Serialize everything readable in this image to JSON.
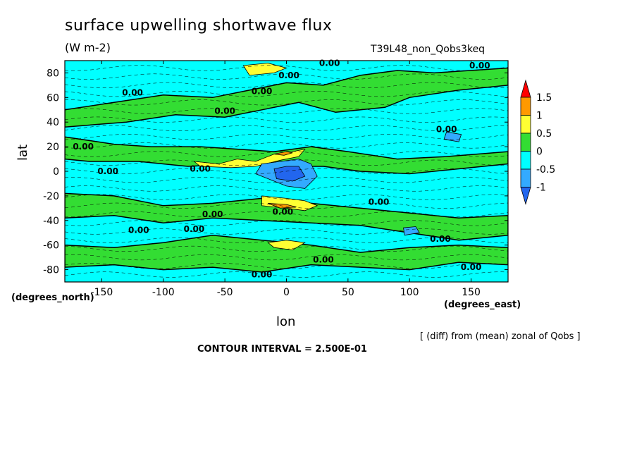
{
  "chart_data": {
    "type": "heatmap",
    "title": "surface upwelling shortwave flux",
    "units": "(W m-2)",
    "run_label": "T39L48_non_Qobs3keq",
    "xlabel": "lon",
    "ylabel": "lat",
    "x_units": "(degrees_east)",
    "y_units": "(degrees_north)",
    "xlim": [
      -180,
      180
    ],
    "ylim": [
      -90,
      90
    ],
    "x_ticks": [
      "-150",
      "-100",
      "-50",
      "0",
      "50",
      "100",
      "150"
    ],
    "x_tick_values": [
      -150,
      -100,
      -50,
      0,
      50,
      100,
      150
    ],
    "y_ticks": [
      "80",
      "60",
      "40",
      "20",
      "0",
      "-20",
      "-40",
      "-60",
      "-80"
    ],
    "y_tick_values": [
      80,
      60,
      40,
      20,
      0,
      -20,
      -40,
      -60,
      -80
    ],
    "colorbar": {
      "levels": [
        "1.5",
        "1",
        "0.5",
        "0",
        "-0.5",
        "-1"
      ],
      "colors": [
        "#ff0000",
        "#ff9900",
        "#ffff33",
        "#33dd33",
        "#00ffff",
        "#33aaff",
        "#2266ee"
      ]
    },
    "contour_labels": [
      {
        "text": "0.00",
        "lon": 35,
        "lat": 88
      },
      {
        "text": "0.00",
        "lon": 2,
        "lat": 78
      },
      {
        "text": "0.00",
        "lon": 157,
        "lat": 86
      },
      {
        "text": "0.00",
        "lon": -125,
        "lat": 64
      },
      {
        "text": "0.00",
        "lon": -20,
        "lat": 65
      },
      {
        "text": "0.00",
        "lon": -50,
        "lat": 49
      },
      {
        "text": "0.00",
        "lon": 130,
        "lat": 34
      },
      {
        "text": "0.00",
        "lon": -165,
        "lat": 20
      },
      {
        "text": "0.00",
        "lon": -70,
        "lat": 2
      },
      {
        "text": "0.00",
        "lon": -145,
        "lat": 0
      },
      {
        "text": "0.00",
        "lon": 75,
        "lat": -25
      },
      {
        "text": "0.00",
        "lon": -3,
        "lat": -33
      },
      {
        "text": "0.00",
        "lon": -60,
        "lat": -35
      },
      {
        "text": "0.00",
        "lon": -120,
        "lat": -48
      },
      {
        "text": "0.00",
        "lon": -75,
        "lat": -47
      },
      {
        "text": "0.00",
        "lon": 125,
        "lat": -55
      },
      {
        "text": "0.00",
        "lon": 30,
        "lat": -72
      },
      {
        "text": "0.00",
        "lon": 150,
        "lat": -78
      },
      {
        "text": "0.00",
        "lon": -20,
        "lat": -84
      }
    ],
    "grid": false
  },
  "footer": {
    "note": "[ (diff) from (mean) zonal of Qobs ]",
    "contour_interval": "CONTOUR INTERVAL = 2.500E-01"
  }
}
